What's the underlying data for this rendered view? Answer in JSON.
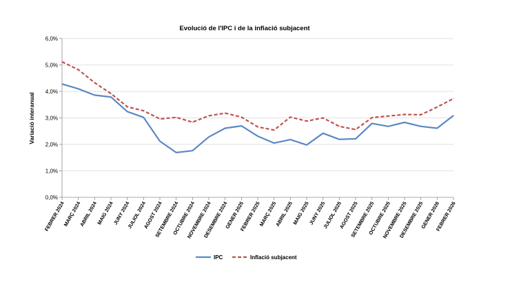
{
  "chart_data": {
    "type": "line",
    "title": "Evolució de l'IPC i de la inflació subjacent",
    "xlabel": "",
    "ylabel": "Variació interanual",
    "ylim": [
      0,
      6
    ],
    "yticks": [
      "0,0%",
      "1,0%",
      "2,0%",
      "3,0%",
      "4,0%",
      "5,0%",
      "6,0%"
    ],
    "grid": "horizontal",
    "legend": "bottom",
    "categories": [
      "FEBRER 2024",
      "MARÇ 2024",
      "ABRIL 2024",
      "MAIG 2024",
      "JUNY 2024",
      "JULIOL 2024",
      "AGOST 2024",
      "SETEMBRE 2024",
      "OCTUBRE 2024",
      "NOVEMBRE 2024",
      "DESEMBRE 2024",
      "GENER 2025",
      "FEBRER 2025",
      "MARÇ 2025",
      "ABRIL 2025",
      "MAIG 2025",
      "JUNY 2025",
      "JULIOL 2025",
      "AGOST 2025",
      "SETEMBRE 2025",
      "OCTUBRE 2025",
      "NOVEMBRE 2025",
      "DESEMBRE 2025",
      "GENER 2026",
      "FEBRER 2026"
    ],
    "series": [
      {
        "name": "IPC",
        "color": "#5b88c4",
        "style": "solid",
        "values": [
          4.28,
          4.1,
          3.86,
          3.79,
          3.24,
          3.02,
          2.12,
          1.69,
          1.76,
          2.28,
          2.61,
          2.7,
          2.31,
          2.05,
          2.18,
          1.98,
          2.42,
          2.19,
          2.21,
          2.79,
          2.68,
          2.83,
          2.68,
          2.61,
          3.09
        ]
      },
      {
        "name": "Inflació subjacent",
        "color": "#c0504d",
        "style": "dashed",
        "values": [
          5.12,
          4.82,
          4.33,
          3.92,
          3.42,
          3.27,
          2.96,
          3.02,
          2.84,
          3.08,
          3.18,
          3.03,
          2.66,
          2.54,
          3.03,
          2.88,
          3.0,
          2.68,
          2.56,
          3.01,
          3.07,
          3.13,
          3.12,
          3.41,
          3.73
        ]
      }
    ]
  }
}
